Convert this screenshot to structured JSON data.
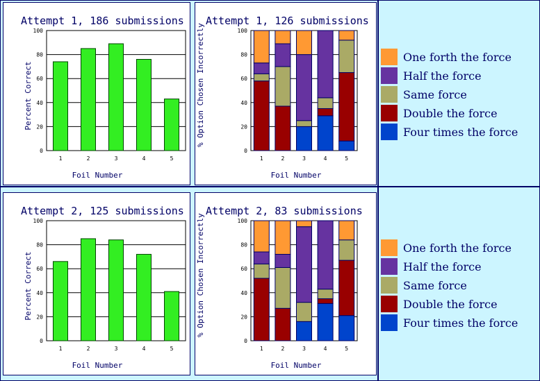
{
  "rows": [
    {
      "correct": {
        "title": "Attempt 1, 186 submissions",
        "ylabel": "Percent Correct",
        "xlabel": "Foil Number"
      },
      "options": {
        "title": "Attempt 1, 126 submissions",
        "ylabel": "% Option Chosen Incorrectly",
        "xlabel": "Foil Number"
      }
    },
    {
      "correct": {
        "title": "Attempt 2, 125 submissions",
        "ylabel": "Percent Correct",
        "xlabel": "Foil Number"
      },
      "options": {
        "title": "Attempt 2, 83 submissions",
        "ylabel": "% Option Chosen Incorrectly",
        "xlabel": "Foil Number"
      }
    }
  ],
  "legend": [
    {
      "label": "One forth the force",
      "color": "#ff9933"
    },
    {
      "label": "Half the force",
      "color": "#6633a0"
    },
    {
      "label": "Same force",
      "color": "#aaaa66"
    },
    {
      "label": "Double the force",
      "color": "#990000"
    },
    {
      "label": "Four times the force",
      "color": "#0044cc"
    }
  ],
  "chart_data": [
    {
      "type": "bar",
      "title": "Attempt 1, 186 submissions",
      "xlabel": "Foil Number",
      "ylabel": "Percent Correct",
      "categories": [
        "1",
        "2",
        "3",
        "4",
        "5"
      ],
      "values": [
        74,
        85,
        89,
        76,
        43
      ],
      "ylim": [
        0,
        100
      ],
      "yticks": [
        0,
        20,
        40,
        60,
        80,
        100
      ],
      "bar_color": "#33ee22",
      "grid": true
    },
    {
      "type": "bar",
      "stacked": true,
      "title": "Attempt 1, 126 submissions",
      "xlabel": "Foil Number",
      "ylabel": "% Option Chosen Incorrectly",
      "categories": [
        "1",
        "2",
        "3",
        "4",
        "5"
      ],
      "ylim": [
        0,
        100
      ],
      "yticks": [
        0,
        20,
        40,
        60,
        80,
        100
      ],
      "series": [
        {
          "name": "Four times the force",
          "color": "#0044cc",
          "values": [
            0,
            0,
            20,
            29,
            8
          ]
        },
        {
          "name": "Double the force",
          "color": "#990000",
          "values": [
            58,
            37,
            0,
            6,
            57
          ]
        },
        {
          "name": "Same force",
          "color": "#aaaa66",
          "values": [
            6,
            33,
            5,
            9,
            27
          ]
        },
        {
          "name": "Half the force",
          "color": "#6633a0",
          "values": [
            9,
            19,
            55,
            56,
            0
          ]
        },
        {
          "name": "One forth the force",
          "color": "#ff9933",
          "values": [
            27,
            11,
            20,
            0,
            8
          ]
        }
      ]
    },
    {
      "type": "bar",
      "title": "Attempt 2, 125 submissions",
      "xlabel": "Foil Number",
      "ylabel": "Percent Correct",
      "categories": [
        "1",
        "2",
        "3",
        "4",
        "5"
      ],
      "values": [
        66,
        85,
        84,
        72,
        41
      ],
      "ylim": [
        0,
        100
      ],
      "yticks": [
        0,
        20,
        40,
        60,
        80,
        100
      ],
      "bar_color": "#33ee22",
      "grid": true
    },
    {
      "type": "bar",
      "stacked": true,
      "title": "Attempt 2, 83 submissions",
      "xlabel": "Foil Number",
      "ylabel": "% Option Chosen Incorrectly",
      "categories": [
        "1",
        "2",
        "3",
        "4",
        "5"
      ],
      "ylim": [
        0,
        100
      ],
      "yticks": [
        0,
        20,
        40,
        60,
        80,
        100
      ],
      "series": [
        {
          "name": "Four times the force",
          "color": "#0044cc",
          "values": [
            0,
            0,
            16,
            31,
            21
          ]
        },
        {
          "name": "Double the force",
          "color": "#990000",
          "values": [
            52,
            27,
            0,
            4,
            46
          ]
        },
        {
          "name": "Same force",
          "color": "#aaaa66",
          "values": [
            12,
            34,
            16,
            8,
            17
          ]
        },
        {
          "name": "Half the force",
          "color": "#6633a0",
          "values": [
            10,
            11,
            63,
            57,
            0
          ]
        },
        {
          "name": "One forth the force",
          "color": "#ff9933",
          "values": [
            26,
            28,
            5,
            0,
            16
          ]
        }
      ]
    }
  ]
}
